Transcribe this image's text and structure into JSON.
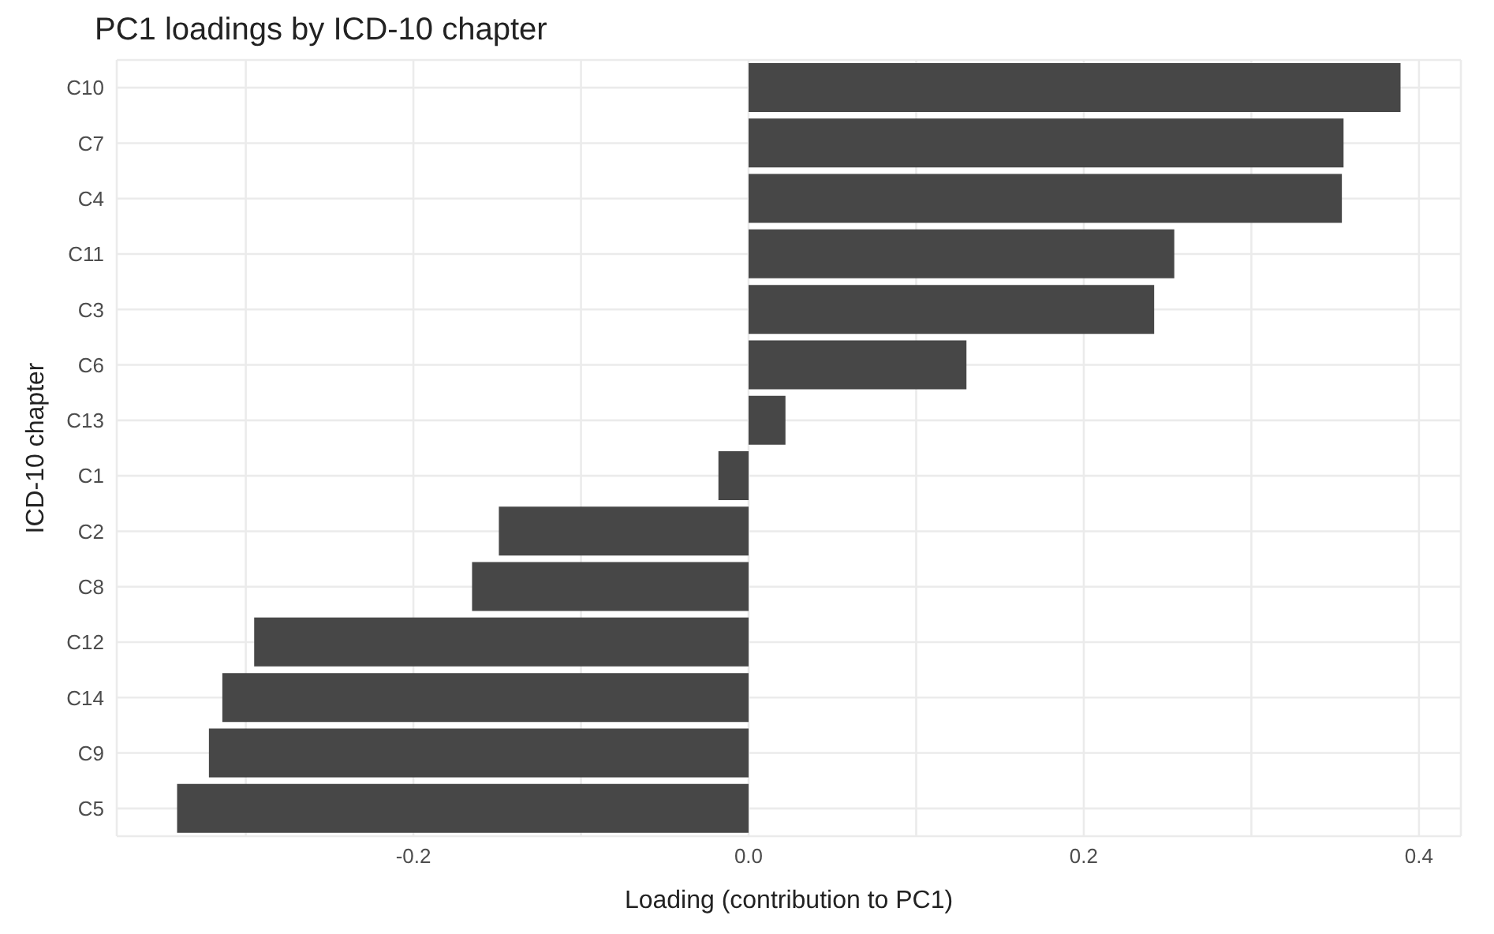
{
  "chart_data": {
    "type": "bar",
    "orientation": "horizontal",
    "title": "PC1 loadings by ICD-10 chapter",
    "xlabel": "Loading (contribution to PC1)",
    "ylabel": "ICD-10 chapter",
    "categories": [
      "C10",
      "C7",
      "C4",
      "C11",
      "C3",
      "C6",
      "C13",
      "C1",
      "C2",
      "C8",
      "C12",
      "C14",
      "C9",
      "C5"
    ],
    "values": [
      0.389,
      0.355,
      0.354,
      0.254,
      0.242,
      0.13,
      0.022,
      -0.018,
      -0.149,
      -0.165,
      -0.295,
      -0.314,
      -0.322,
      -0.341
    ],
    "color": "#474747",
    "xlim": [
      -0.377,
      0.425
    ],
    "xticks": [
      {
        "value": -0.3,
        "label": null
      },
      {
        "value": -0.2,
        "label": "-0.2"
      },
      {
        "value": -0.1,
        "label": null
      },
      {
        "value": 0,
        "label": "0.0"
      },
      {
        "value": 0.1,
        "label": null
      },
      {
        "value": 0.2,
        "label": "0.2"
      },
      {
        "value": 0.3,
        "label": null
      },
      {
        "value": 0.4,
        "label": "0.4"
      }
    ],
    "grid": true
  }
}
